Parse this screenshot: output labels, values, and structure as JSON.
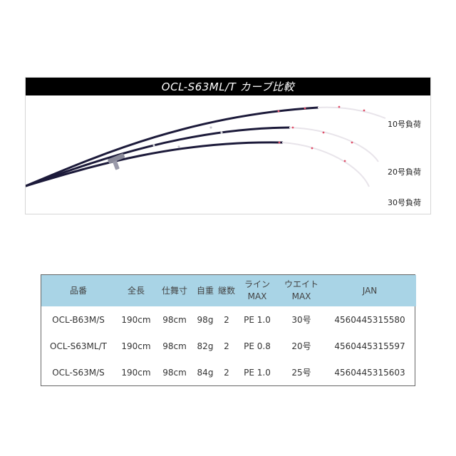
{
  "curve_panel": {
    "title": "OCL-S63ML/T カーブ比較",
    "load_labels": [
      "10号負荷",
      "20号負荷",
      "30号負荷"
    ]
  },
  "spec_table": {
    "headers": {
      "name": "品番",
      "length": "全長",
      "extended": "仕舞寸",
      "weight": "自重",
      "sections": "継数",
      "line_1": "ライン",
      "line_2": "MAX",
      "lure_1": "ウエイト",
      "lure_2": "MAX",
      "jan": "JAN"
    },
    "rows": [
      {
        "name": "OCL-B63M/S",
        "length": "190cm",
        "extended": "98cm",
        "weight": "98g",
        "sections": "2",
        "line": "PE 1.0",
        "lure": "30号",
        "jan": "4560445315580"
      },
      {
        "name": "OCL-S63ML/T",
        "length": "190cm",
        "extended": "98cm",
        "weight": "82g",
        "sections": "2",
        "line": "PE 0.8",
        "lure": "20号",
        "jan": "4560445315597"
      },
      {
        "name": "OCL-S63M/S",
        "length": "190cm",
        "extended": "98cm",
        "weight": "84g",
        "sections": "2",
        "line": "PE 1.0",
        "lure": "25号",
        "jan": "4560445315603"
      }
    ]
  },
  "colors": {
    "rod": "#1c1a3a",
    "tip": "#e8e4ea",
    "tip_accent": "#e0506a",
    "header_bg": "#a9d4e6"
  }
}
